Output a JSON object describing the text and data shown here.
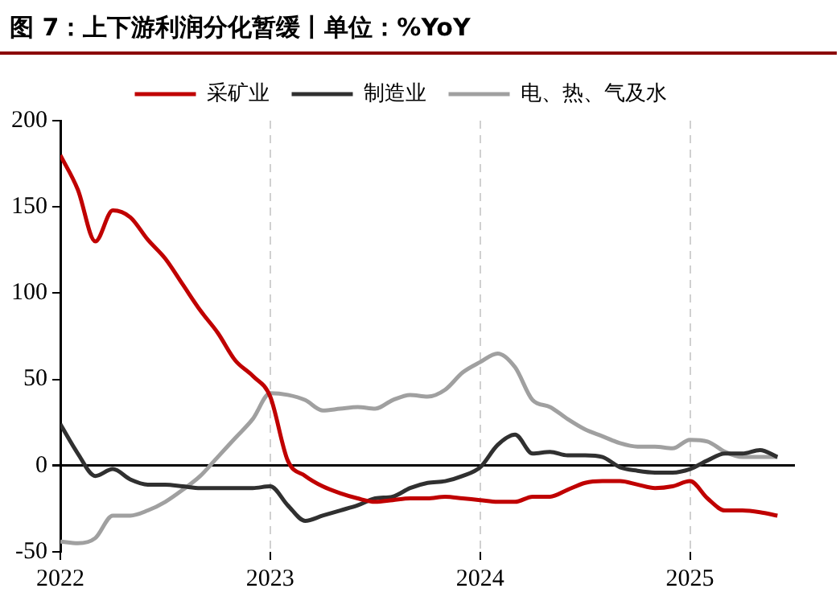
{
  "chart_data": {
    "type": "line",
    "title": "图 7：上下游利润分化暂缓丨单位：%YoY",
    "x": [
      "2022-01",
      "2022-02",
      "2022-03",
      "2022-04",
      "2022-05",
      "2022-06",
      "2022-07",
      "2022-08",
      "2022-09",
      "2022-10",
      "2022-11",
      "2022-12",
      "2023-01",
      "2023-02",
      "2023-03",
      "2023-04",
      "2023-05",
      "2023-06",
      "2023-07",
      "2023-08",
      "2023-09",
      "2023-10",
      "2023-11",
      "2023-12",
      "2024-01",
      "2024-02",
      "2024-03",
      "2024-04",
      "2024-05",
      "2024-06",
      "2024-07",
      "2024-08",
      "2024-09",
      "2024-10",
      "2024-11",
      "2024-12",
      "2025-01",
      "2025-02",
      "2025-03",
      "2025-04",
      "2025-05",
      "2025-06"
    ],
    "series": [
      {
        "name": "采矿业",
        "color": "#c00000",
        "values": [
          180,
          160,
          130,
          148,
          144,
          131,
          120,
          105,
          90,
          77,
          61,
          52,
          40,
          3,
          -6,
          -12,
          -16,
          -19,
          -21,
          -20,
          -19,
          -19,
          -18,
          -19,
          -20,
          -21,
          -21,
          -18,
          -18,
          -14,
          -10,
          -9,
          -9,
          -11,
          -13,
          -12,
          -9,
          -19,
          -26,
          -26,
          -27,
          -29
        ]
      },
      {
        "name": "制造业",
        "color": "#303030",
        "values": [
          24,
          7,
          -6,
          -2,
          -8,
          -11,
          -11,
          -12,
          -13,
          -13,
          -13,
          -13,
          -12,
          -23,
          -32,
          -29,
          -26,
          -23,
          -19,
          -18,
          -13,
          -10,
          -9,
          -6,
          -1,
          12,
          18,
          7,
          8,
          6,
          6,
          5,
          -1,
          -3,
          -4,
          -4,
          -2,
          3,
          7,
          7,
          9,
          5
        ]
      },
      {
        "name": "电、热、气及水",
        "color": "#a0a0a0",
        "values": [
          -44,
          -45,
          -42,
          -29,
          -29,
          -26,
          -21,
          -14,
          -6,
          5,
          16,
          27,
          42,
          41,
          38,
          32,
          33,
          34,
          33,
          38,
          41,
          40,
          44,
          54,
          60,
          65,
          57,
          38,
          34,
          27,
          21,
          17,
          13,
          11,
          11,
          10,
          15,
          14,
          8,
          5,
          5,
          5
        ]
      }
    ],
    "xlim": [
      "2022-01",
      "2025-07"
    ],
    "xticks": [
      "2022",
      "2023",
      "2024",
      "2025"
    ],
    "ylim": [
      -50,
      200
    ],
    "yticks": [
      -50,
      0,
      50,
      100,
      150,
      200
    ],
    "grid": "x",
    "legend": "top",
    "marker": "none",
    "line_style": "solid"
  }
}
